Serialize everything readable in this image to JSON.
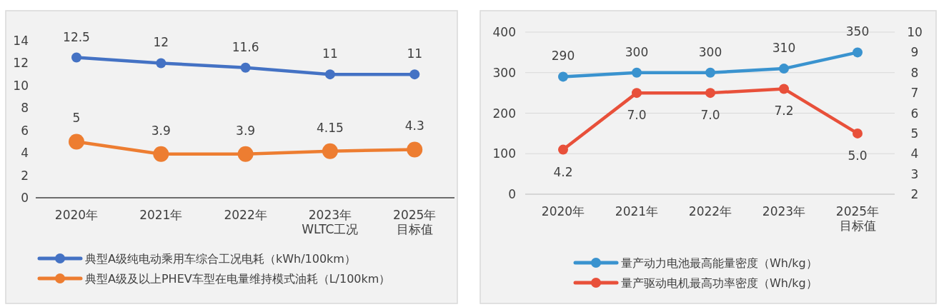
{
  "chart_data": [
    {
      "type": "line",
      "categories": [
        "2020年",
        "2021年",
        "2022年",
        "2023年WLTC工况",
        "2025年目标值"
      ],
      "ylim": [
        0,
        14
      ],
      "yticks": [
        0,
        2,
        4,
        6,
        8,
        10,
        12,
        14
      ],
      "data_labels": true,
      "legend": "bottom",
      "marker": "circle",
      "series": [
        {
          "name": "典型A级纯电动乘用车综合工况电耗（kWh/100km）",
          "color": "#4472c4",
          "values": [
            12.5,
            12,
            11.6,
            11,
            11
          ]
        },
        {
          "name": "典型A级及以上PHEV车型在电量维持模式油耗（L/100km）",
          "color": "#ed7d31",
          "values": [
            5,
            3.9,
            3.9,
            4.15,
            4.3
          ]
        }
      ]
    },
    {
      "type": "line",
      "categories": [
        "2020年",
        "2021年",
        "2022年",
        "2023年",
        "2025年目标值"
      ],
      "ylim": [
        0,
        400
      ],
      "yticks": [
        0,
        100,
        200,
        300,
        400
      ],
      "y2lim": [
        2,
        10
      ],
      "y2ticks": [
        2,
        3,
        4,
        5,
        6,
        7,
        8,
        9,
        10
      ],
      "grid": "y",
      "legend": "bottom",
      "marker": "circle",
      "series": [
        {
          "name": "量产动力电池最高能量密度（Wh/kg）",
          "color": "#3a93cf",
          "values": [
            290,
            300,
            300,
            310,
            350
          ],
          "value_labels": [
            "290",
            "300",
            "300",
            "310",
            "350"
          ]
        },
        {
          "name": "量产驱动电机最高功率密度（Wh/kg）",
          "color": "#e8503a",
          "axis": "y2",
          "values": [
            4.2,
            7.0,
            7.0,
            7.2,
            5.0
          ],
          "value_labels": [
            "4.2",
            "7.0",
            "7.0",
            "7.2",
            "5.0"
          ]
        }
      ]
    }
  ]
}
